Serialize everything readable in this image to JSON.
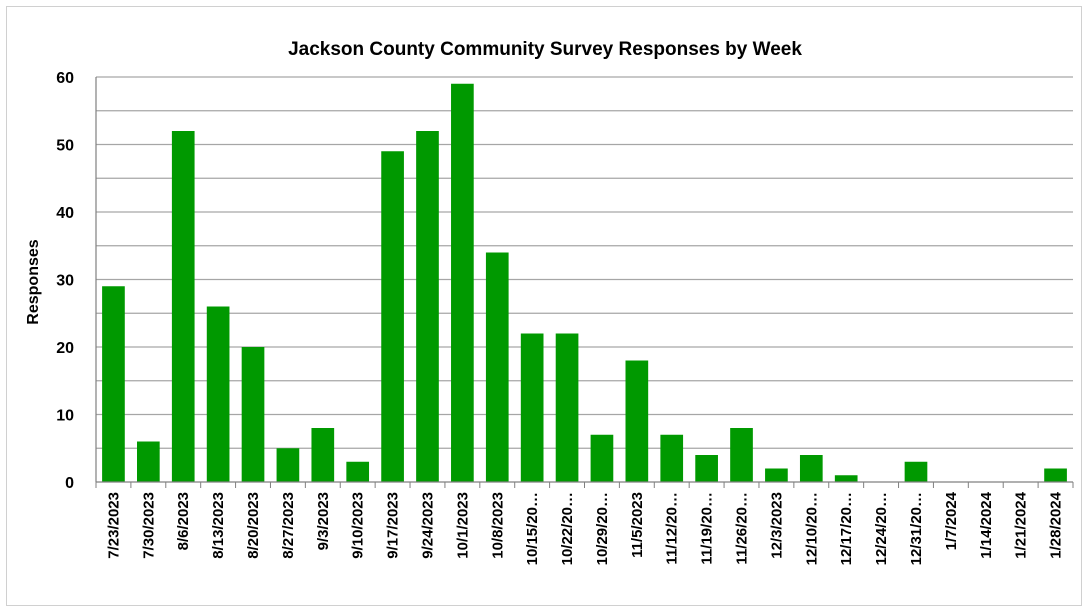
{
  "chart_data": {
    "type": "bar",
    "title": "Jackson County Community Survey Responses by Week",
    "xlabel": "",
    "ylabel": "Responses",
    "ylim": [
      0,
      60
    ],
    "yticks": [
      0,
      10,
      20,
      30,
      40,
      50,
      60
    ],
    "grid": true,
    "minor_grid_step": 5,
    "bar_color": "#009900",
    "categories": [
      "7/23/2023",
      "7/30/2023",
      "8/6/2023",
      "8/13/2023",
      "8/20/2023",
      "8/27/2023",
      "9/3/2023",
      "9/10/2023",
      "9/17/2023",
      "9/24/2023",
      "10/1/2023",
      "10/8/2023",
      "10/15/20…",
      "10/22/20…",
      "10/29/20…",
      "11/5/2023",
      "11/12/20…",
      "11/19/20…",
      "11/26/20…",
      "12/3/2023",
      "12/10/20…",
      "12/17/20…",
      "12/24/20…",
      "12/31/20…",
      "1/7/2024",
      "1/14/2024",
      "1/21/2024",
      "1/28/2024"
    ],
    "values": [
      29,
      6,
      52,
      26,
      20,
      5,
      8,
      3,
      49,
      52,
      59,
      34,
      22,
      22,
      7,
      18,
      7,
      4,
      8,
      2,
      4,
      1,
      0,
      3,
      0,
      0,
      0,
      2
    ]
  }
}
